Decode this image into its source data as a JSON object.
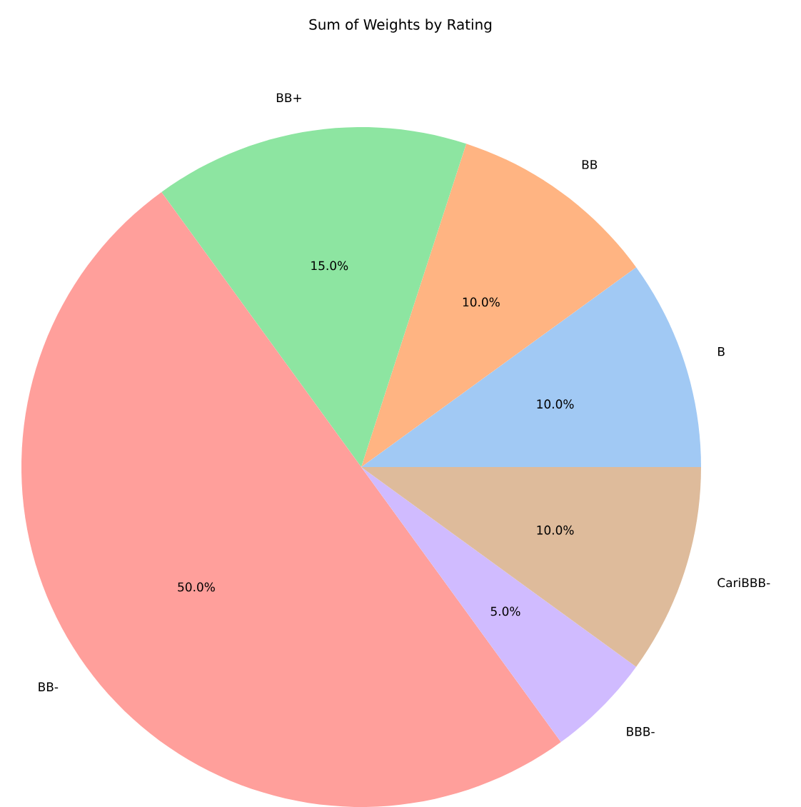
{
  "chart_data": {
    "type": "pie",
    "title": "Sum of Weights by Rating",
    "categories": [
      "B",
      "BB",
      "BB+",
      "BB-",
      "BBB-",
      "CariBBB-"
    ],
    "values": [
      10,
      10,
      15,
      50,
      5,
      10
    ],
    "colors": [
      "#a1c9f4",
      "#ffb482",
      "#8de5a1",
      "#ff9f9b",
      "#d0bbff",
      "#debb9b"
    ],
    "value_labels": [
      "10.0%",
      "10.0%",
      "15.0%",
      "50.0%",
      "5.0%",
      "10.0%"
    ]
  }
}
